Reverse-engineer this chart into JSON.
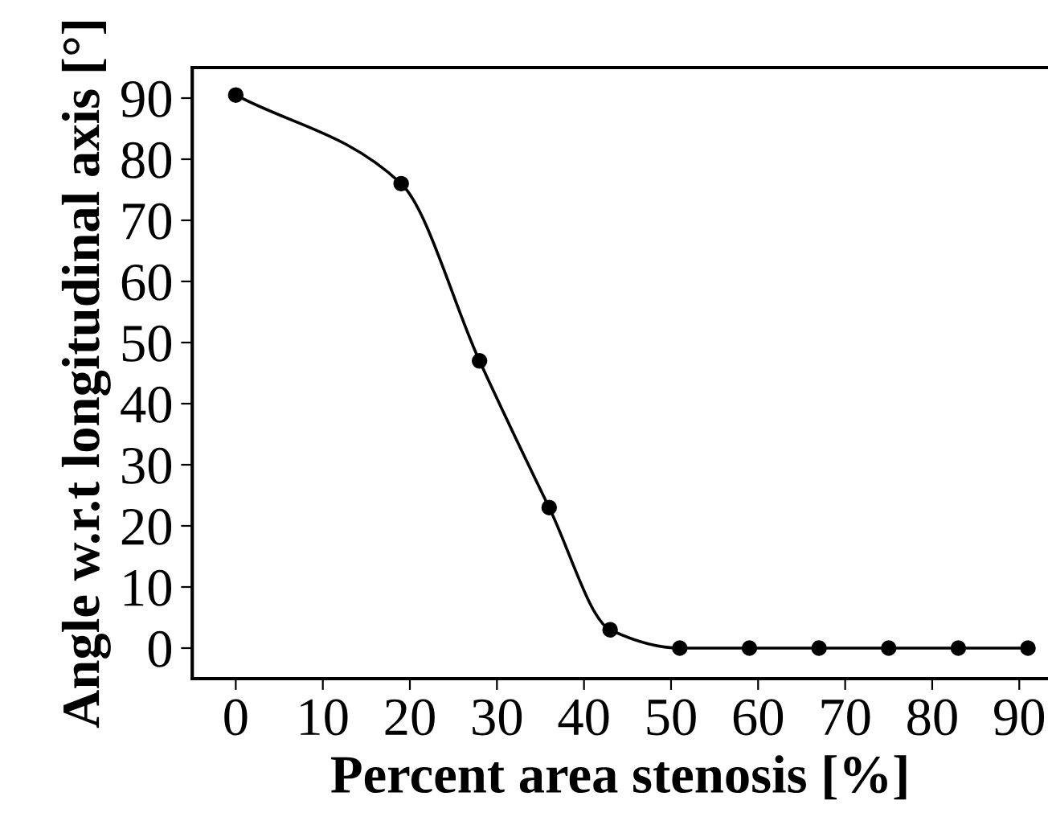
{
  "chart_data": {
    "type": "line",
    "xlabel": "Percent area stenosis [%]",
    "ylabel": "Angle w.r.t longitudinal axis [°]",
    "x": [
      0,
      19,
      28,
      36,
      43,
      51,
      59,
      67,
      75,
      83,
      91
    ],
    "series": [
      {
        "color": "#000000",
        "values": [
          90.5,
          76,
          47,
          23,
          3,
          0,
          0,
          0,
          0,
          0,
          0
        ]
      }
    ],
    "marker": "circle",
    "line_style": "solid",
    "grid": false,
    "legend": false,
    "xlim": [
      -5,
      93.3
    ],
    "ylim": [
      -5,
      95
    ],
    "xticks": [
      0,
      10,
      20,
      30,
      40,
      50,
      60,
      70,
      80,
      90
    ],
    "yticks": [
      0,
      10,
      20,
      30,
      40,
      50,
      60,
      70,
      80,
      90
    ]
  }
}
